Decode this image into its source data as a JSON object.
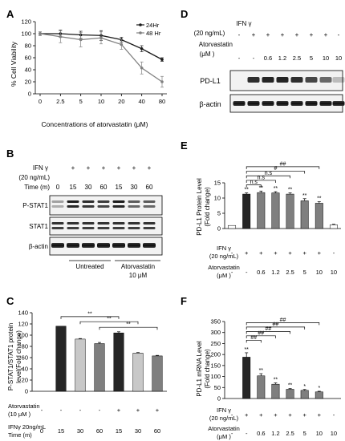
{
  "panel_labels": {
    "A": "A",
    "B": "B",
    "C": "C",
    "D": "D",
    "E": "E",
    "F": "F"
  },
  "colors": {
    "dark": "#262626",
    "mid": "#7f7f7f",
    "light": "#c8c8c8",
    "white": "#ffffff",
    "line1": "#1a1a1a",
    "line2": "#808080"
  },
  "panel_b": {
    "ifn_row": "IFN γ",
    "ifn_conc": "(20 ng/mL)",
    "time_label": "Time (m)",
    "times": [
      "0",
      "15",
      "30",
      "60",
      "15",
      "30",
      "60"
    ],
    "ifn_signs": [
      "+",
      "+",
      "+",
      "+",
      "+",
      "+"
    ],
    "bands": [
      "P-STAT1",
      "STAT1",
      "β-actin"
    ],
    "group1": "Untreated",
    "group2_line1": "Atorvastatin",
    "group2_line2": "10 μM"
  },
  "panel_d": {
    "ifn_row": "IFN γ",
    "ifn_conc": "(20 ng/mL)",
    "ator_row1": "Atorvastatin",
    "ator_row2": "(μM )",
    "ifn_signs": [
      "-",
      "+",
      "+",
      "+",
      "+",
      "+",
      "+",
      "-"
    ],
    "ator_vals": [
      "-",
      "-",
      "0.6",
      "1.2",
      "2.5",
      "5",
      "10",
      "10"
    ],
    "bands": [
      "PD-L1",
      "β-actin"
    ]
  },
  "chart_data": [
    {
      "panel": "A",
      "type": "line",
      "xlabel": "Concentrations of atorvastatin (μM)",
      "ylabel": "% Cell Viability",
      "categories": [
        "0",
        "2.5",
        "5",
        "10",
        "20",
        "40",
        "80"
      ],
      "yticks": [
        "0",
        "20",
        "40",
        "60",
        "80",
        "100",
        "120"
      ],
      "ylim": [
        0,
        120
      ],
      "legend_position": "top-right",
      "series": [
        {
          "name": "24Hr",
          "values": [
            100,
            100,
            98,
            97,
            90,
            75,
            57
          ],
          "errors": [
            3,
            6,
            6,
            8,
            4,
            5,
            3
          ]
        },
        {
          "name": "48 Hr",
          "values": [
            100,
            95,
            90,
            93,
            82,
            43,
            20
          ],
          "errors": [
            3,
            10,
            12,
            10,
            8,
            10,
            9
          ]
        }
      ]
    },
    {
      "panel": "C",
      "type": "bar",
      "ylabel1": "P-STAT1/STAT1 protein",
      "ylabel2": "level(Fold change)",
      "yticks": [
        "0",
        "20",
        "40",
        "60",
        "80",
        "100",
        "120",
        "140"
      ],
      "ylim": [
        0,
        140
      ],
      "categories": [
        "0",
        "15",
        "30",
        "60",
        "15",
        "30",
        "60"
      ],
      "values": [
        0,
        116,
        93,
        85,
        104,
        68,
        63
      ],
      "errors": [
        0,
        0,
        1,
        2,
        2,
        1,
        1
      ],
      "bar_colors": [
        "#262626",
        "#262626",
        "#c8c8c8",
        "#7f7f7f",
        "#262626",
        "#c8c8c8",
        "#7f7f7f"
      ],
      "row1_label_a": "Atorvastatin",
      "row1_label_b": "(10 μM )",
      "row1_signs": [
        "-",
        "-",
        "-",
        "-",
        "+",
        "+",
        "+"
      ],
      "row2_label_a": "IFNγ 20ng/mL",
      "row2_label_b": "Time (m)",
      "brackets": [
        {
          "from": 1,
          "to": 4,
          "level": 133,
          "label": "**"
        },
        {
          "from": 2,
          "to": 5,
          "level": 124,
          "label": "**"
        },
        {
          "from": 3,
          "to": 6,
          "level": 114,
          "label": "**"
        }
      ]
    },
    {
      "panel": "E",
      "type": "bar",
      "ylabel1": "PD-L1 Protein Level",
      "ylabel2": "(Fold change)",
      "yticks": [
        "0",
        "5",
        "10",
        "15"
      ],
      "ylim": [
        0,
        15
      ],
      "categories": [
        "-",
        "-",
        "0.6",
        "1.2",
        "2.5",
        "5",
        "10",
        "10"
      ],
      "values": [
        1,
        11.3,
        11.8,
        11.7,
        11.3,
        9.1,
        8.3,
        1.2
      ],
      "errors": [
        0,
        0.4,
        0.5,
        0.4,
        0.4,
        0.7,
        0.5,
        0.2
      ],
      "stars": [
        "",
        "**",
        "**",
        "**",
        "**",
        "**",
        "**",
        ""
      ],
      "bar_colors": [
        "#ffffff",
        "#262626",
        "#7f7f7f",
        "#7f7f7f",
        "#7f7f7f",
        "#7f7f7f",
        "#7f7f7f",
        "#ffffff"
      ],
      "row1_label_a": "IFN γ",
      "row1_label_b": "(20 ng/mL)",
      "row1_signs": [
        "-",
        "+",
        "+",
        "+",
        "+",
        "+",
        "+",
        "-"
      ],
      "row2_label_a": "Atorvastatin",
      "row2_label_b": "(μM )",
      "brackets": [
        {
          "from": 1,
          "to": 2,
          "level": 14.3,
          "label": "n.s"
        },
        {
          "from": 1,
          "to": 3,
          "level": 15.8,
          "label": "n.s"
        },
        {
          "from": 1,
          "to": 4,
          "level": 17.3,
          "label": "n.s"
        },
        {
          "from": 1,
          "to": 5,
          "level": 18.8,
          "label": "#"
        },
        {
          "from": 1,
          "to": 6,
          "level": 20.3,
          "label": "##"
        }
      ]
    },
    {
      "panel": "F",
      "type": "bar",
      "ylabel1": "PD-L1 mRNA Level",
      "ylabel2": "(Fold change)",
      "yticks": [
        "0",
        "50",
        "100",
        "150",
        "200",
        "250",
        "300",
        "350"
      ],
      "ylim": [
        0,
        350
      ],
      "categories": [
        "-",
        "-",
        "0.6",
        "1.2",
        "2.5",
        "5",
        "10",
        "10"
      ],
      "values": [
        0,
        188,
        103,
        65,
        42,
        37,
        30,
        0
      ],
      "errors": [
        0,
        20,
        10,
        6,
        3,
        4,
        3,
        0
      ],
      "stars": [
        "",
        "**",
        "**",
        "**",
        "**",
        "*",
        "*",
        ""
      ],
      "bar_colors": [
        "#ffffff",
        "#262626",
        "#7f7f7f",
        "#7f7f7f",
        "#7f7f7f",
        "#7f7f7f",
        "#7f7f7f",
        "#ffffff"
      ],
      "row1_label_a": "IFN γ",
      "row1_label_b": "(20 ng/mL)",
      "row1_signs": [
        "-",
        "+",
        "+",
        "+",
        "+",
        "+",
        "+",
        "-"
      ],
      "row2_label_a": "Atorvastatin",
      "row2_label_b": "(μM )",
      "brackets": [
        {
          "from": 1,
          "to": 2,
          "level": 265,
          "label": "##"
        },
        {
          "from": 1,
          "to": 3,
          "level": 285,
          "label": "##"
        },
        {
          "from": 1,
          "to": 4,
          "level": 305,
          "label": "##"
        },
        {
          "from": 1,
          "to": 5,
          "level": 325,
          "label": "##"
        },
        {
          "from": 1,
          "to": 6,
          "level": 345,
          "label": "##"
        }
      ]
    }
  ]
}
